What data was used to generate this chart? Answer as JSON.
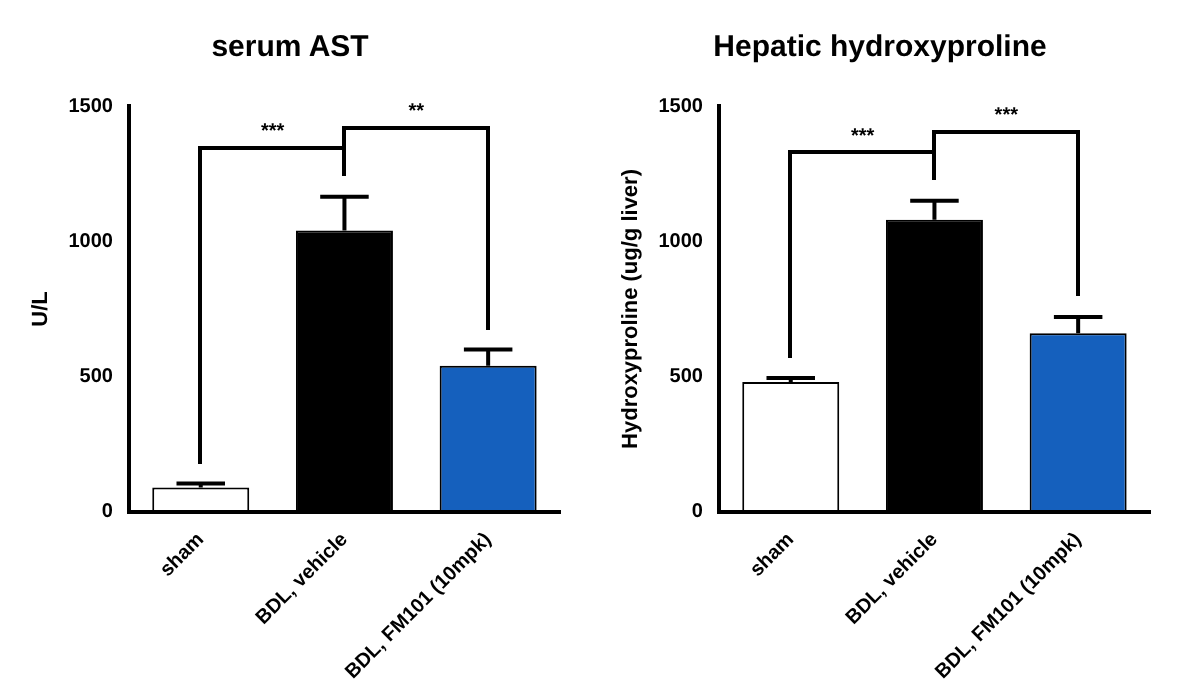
{
  "chart_data": [
    {
      "type": "bar",
      "title": "serum AST",
      "ylabel": "U/L",
      "categories": [
        "sham",
        "BDL, vehicle",
        "BDL, FM101 (10mpk)"
      ],
      "values": [
        90,
        1040,
        540
      ],
      "colors": [
        "#ffffff",
        "#000000",
        "#1560bd"
      ],
      "errors": [
        [
          90,
          105
        ],
        [
          1040,
          1165
        ],
        [
          540,
          600
        ]
      ],
      "ylim": [
        0,
        1500
      ],
      "yticks": [
        0,
        500,
        1000,
        1500
      ],
      "grid": false,
      "legend": false,
      "annotations": [
        "***",
        "**"
      ]
    },
    {
      "type": "bar",
      "title": "Hepatic hydroxyproline",
      "ylabel": "Hydroxyproline (ug/g liver)",
      "categories": [
        "sham",
        "BDL, vehicle",
        "BDL, FM101 (10mpk)"
      ],
      "values": [
        480,
        1080,
        660
      ],
      "colors": [
        "#ffffff",
        "#000000",
        "#1560bd"
      ],
      "errors": [
        [
          480,
          495
        ],
        [
          1080,
          1150
        ],
        [
          660,
          720
        ]
      ],
      "ylim": [
        0,
        1500
      ],
      "yticks": [
        0,
        500,
        1000,
        1500
      ],
      "grid": false,
      "legend": false,
      "annotations": [
        "***",
        "***"
      ]
    }
  ]
}
